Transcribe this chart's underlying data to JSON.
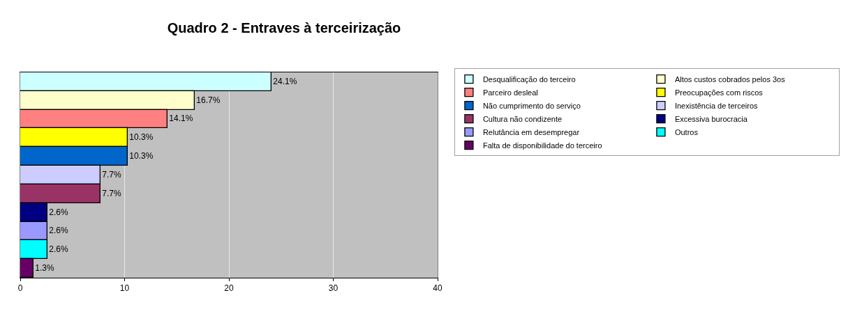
{
  "chart_data": {
    "type": "bar",
    "title": "Quadro 2 - Entraves à terceirização",
    "orientation": "horizontal",
    "stacked": true,
    "categories": [
      null,
      null,
      null,
      null,
      null,
      null,
      null,
      null,
      null,
      null,
      null
    ],
    "series": [
      {
        "name": "Desqualificação do terceiro",
        "color": "#ccffff",
        "values": [
          24.1,
          null,
          null,
          null,
          null,
          null,
          null,
          null,
          null,
          null,
          null
        ],
        "value_labels": [
          "24.1%",
          null,
          null,
          null,
          null,
          null,
          null,
          null,
          null,
          null,
          null
        ]
      },
      {
        "name": "Altos custos cobrados pelos 3os",
        "color": "#ffffcc",
        "values": [
          null,
          16.7,
          null,
          null,
          null,
          null,
          null,
          null,
          null,
          null,
          null
        ],
        "value_labels": [
          null,
          "16.7%",
          null,
          null,
          null,
          null,
          null,
          null,
          null,
          null,
          null
        ]
      },
      {
        "name": "Parceiro desleal",
        "color": "#ff8080",
        "values": [
          null,
          null,
          14.1,
          null,
          null,
          null,
          null,
          null,
          null,
          null,
          null
        ],
        "value_labels": [
          null,
          null,
          "14.1%",
          null,
          null,
          null,
          null,
          null,
          null,
          null,
          null
        ]
      },
      {
        "name": "Preocupações com riscos",
        "color": "#ffff00",
        "values": [
          null,
          null,
          null,
          10.3,
          null,
          null,
          null,
          null,
          null,
          null,
          null
        ],
        "value_labels": [
          null,
          null,
          null,
          "10.3%",
          null,
          null,
          null,
          null,
          null,
          null,
          null
        ]
      },
      {
        "name": "Não cumprimento do serviço",
        "color": "#0066cc",
        "values": [
          null,
          null,
          null,
          null,
          10.3,
          null,
          null,
          null,
          null,
          null,
          null
        ],
        "value_labels": [
          null,
          null,
          null,
          null,
          "10.3%",
          null,
          null,
          null,
          null,
          null,
          null
        ]
      },
      {
        "name": "Inexistência de terceiros",
        "color": "#ccccff",
        "values": [
          null,
          null,
          null,
          null,
          null,
          7.7,
          null,
          null,
          null,
          null,
          null
        ],
        "value_labels": [
          null,
          null,
          null,
          null,
          null,
          "7.7%",
          null,
          null,
          null,
          null,
          null
        ]
      },
      {
        "name": "Cultura não condizente",
        "color": "#993366",
        "values": [
          null,
          null,
          null,
          null,
          null,
          null,
          7.7,
          null,
          null,
          null,
          null
        ],
        "value_labels": [
          null,
          null,
          null,
          null,
          null,
          null,
          "7.7%",
          null,
          null,
          null,
          null
        ]
      },
      {
        "name": "Excessiva burocracia",
        "color": "#000080",
        "values": [
          null,
          null,
          null,
          null,
          null,
          null,
          null,
          2.6,
          null,
          null,
          null
        ],
        "value_labels": [
          null,
          null,
          null,
          null,
          null,
          null,
          null,
          "2.6%",
          null,
          null,
          null
        ]
      },
      {
        "name": "Relutância em desempregar",
        "color": "#9999ff",
        "values": [
          null,
          null,
          null,
          null,
          null,
          null,
          null,
          null,
          2.6,
          null,
          null
        ],
        "value_labels": [
          null,
          null,
          null,
          null,
          null,
          null,
          null,
          null,
          "2.6%",
          null,
          null
        ]
      },
      {
        "name": "Outros",
        "color": "#00ffff",
        "values": [
          null,
          null,
          null,
          null,
          null,
          null,
          null,
          null,
          null,
          2.6,
          null
        ],
        "value_labels": [
          null,
          null,
          null,
          null,
          null,
          null,
          null,
          null,
          null,
          "2.6%",
          null
        ]
      },
      {
        "name": "Falta de disponibilidade do terceiro",
        "color": "#660066",
        "values": [
          null,
          null,
          null,
          null,
          null,
          null,
          null,
          null,
          null,
          null,
          1.3
        ],
        "value_labels": [
          null,
          null,
          null,
          null,
          null,
          null,
          null,
          null,
          null,
          null,
          "1.3%"
        ]
      }
    ],
    "xlim": [
      0,
      40
    ],
    "xticks": [
      0,
      10,
      20,
      30,
      40
    ],
    "grid": "x",
    "legend": "right",
    "tick_labels": "x"
  }
}
